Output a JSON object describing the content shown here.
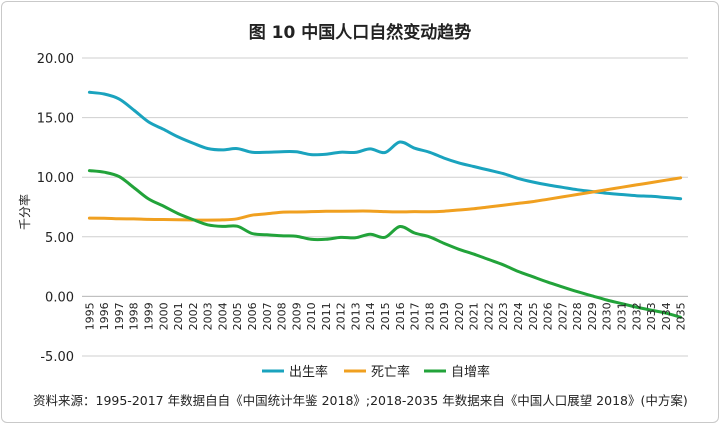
{
  "chart_data": {
    "type": "line",
    "title": "图 10 中国人口自然变动趋势",
    "ylabel": "千分率",
    "xlabel": "",
    "ylim": [
      -5.0,
      20.0
    ],
    "y_ticks": [
      "20.00",
      "15.00",
      "10.00",
      "5.00",
      "0.00",
      "-5.00"
    ],
    "y_tick_values": [
      20,
      15,
      10,
      5,
      0,
      -5
    ],
    "grid": true,
    "legend_position": "bottom-center",
    "x": [
      1995,
      1996,
      1997,
      1998,
      1999,
      2000,
      2001,
      2002,
      2003,
      2004,
      2005,
      2006,
      2007,
      2008,
      2009,
      2010,
      2011,
      2012,
      2013,
      2014,
      2015,
      2016,
      2017,
      2018,
      2019,
      2020,
      2021,
      2022,
      2023,
      2024,
      2025,
      2026,
      2027,
      2028,
      2029,
      2030,
      2031,
      2032,
      2033,
      2034,
      2035
    ],
    "series": [
      {
        "name": "出生率",
        "color": "#1aa3be",
        "values": [
          17.12,
          16.98,
          16.57,
          15.64,
          14.64,
          14.03,
          13.38,
          12.86,
          12.41,
          12.29,
          12.4,
          12.09,
          12.1,
          12.14,
          12.13,
          11.9,
          11.93,
          12.1,
          12.08,
          12.37,
          12.07,
          12.95,
          12.43,
          12.1,
          11.6,
          11.2,
          10.9,
          10.6,
          10.3,
          9.9,
          9.6,
          9.35,
          9.15,
          8.95,
          8.8,
          8.65,
          8.55,
          8.45,
          8.4,
          8.3,
          8.2
        ]
      },
      {
        "name": "死亡率",
        "color": "#f0a020",
        "values": [
          6.57,
          6.56,
          6.51,
          6.5,
          6.46,
          6.45,
          6.43,
          6.41,
          6.4,
          6.42,
          6.51,
          6.81,
          6.93,
          7.06,
          7.08,
          7.11,
          7.14,
          7.15,
          7.16,
          7.16,
          7.11,
          7.09,
          7.11,
          7.1,
          7.15,
          7.25,
          7.35,
          7.5,
          7.65,
          7.8,
          7.95,
          8.15,
          8.35,
          8.55,
          8.75,
          8.95,
          9.15,
          9.35,
          9.55,
          9.75,
          9.95
        ]
      },
      {
        "name": "自增率",
        "color": "#22a33a",
        "values": [
          10.55,
          10.42,
          10.06,
          9.14,
          8.18,
          7.58,
          6.95,
          6.45,
          6.01,
          5.87,
          5.89,
          5.28,
          5.17,
          5.08,
          5.05,
          4.79,
          4.79,
          4.95,
          4.92,
          5.21,
          4.96,
          5.86,
          5.32,
          5.0,
          4.45,
          3.95,
          3.55,
          3.1,
          2.65,
          2.1,
          1.65,
          1.2,
          0.8,
          0.4,
          0.05,
          -0.3,
          -0.6,
          -0.9,
          -1.15,
          -1.4,
          -1.75
        ]
      }
    ],
    "source": "资料来源：1995-2017 年数据自自《中国统计年鉴 2018》;2018-2035 年数据来自《中国人口展望 2018》(中方案)"
  }
}
